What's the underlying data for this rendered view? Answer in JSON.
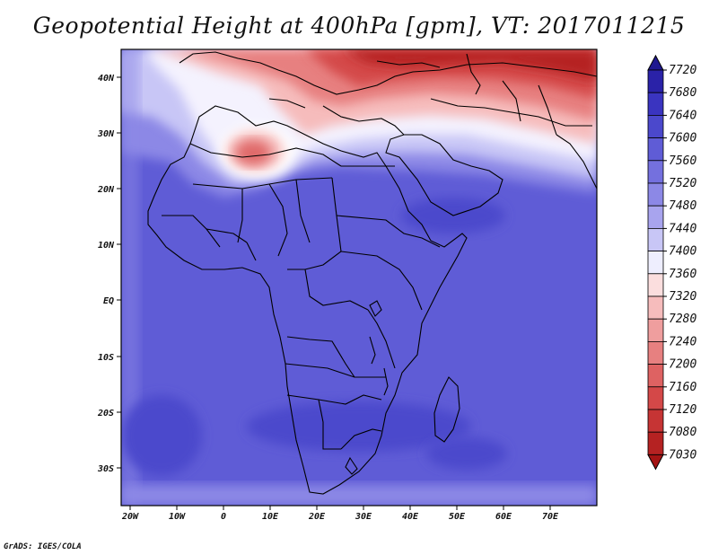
{
  "title": "Geopotential Height at 400hPa [gpm], VT: 2017011215",
  "credit": "GrADS: IGES/COLA",
  "map": {
    "region": "Africa and Middle East",
    "variable": "Geopotential Height",
    "level": "400hPa",
    "units": "gpm",
    "valid_time": "2017011215",
    "lon_labels": [
      "20W",
      "10W",
      "0",
      "10E",
      "20E",
      "30E",
      "40E",
      "50E",
      "60E",
      "70E"
    ],
    "lat_labels": [
      "40N",
      "30N",
      "20N",
      "10N",
      "EQ",
      "10S",
      "20S",
      "30S"
    ]
  },
  "colorbar": {
    "levels": [
      "7720",
      "7680",
      "7640",
      "7600",
      "7560",
      "7520",
      "7480",
      "7440",
      "7400",
      "7360",
      "7320",
      "7280",
      "7240",
      "7200",
      "7160",
      "7120",
      "7080",
      "7030"
    ],
    "colors": [
      "#1f1890",
      "#2a22a8",
      "#3a34c0",
      "#4b48cc",
      "#5f5cd6",
      "#7470de",
      "#8c88e6",
      "#a8a4ee",
      "#c8c6f6",
      "#eeeefe",
      "#fbdede",
      "#f6bcbc",
      "#ef9e9e",
      "#e78080",
      "#de6262",
      "#d44848",
      "#c63434",
      "#b52222",
      "#a41414"
    ]
  }
}
